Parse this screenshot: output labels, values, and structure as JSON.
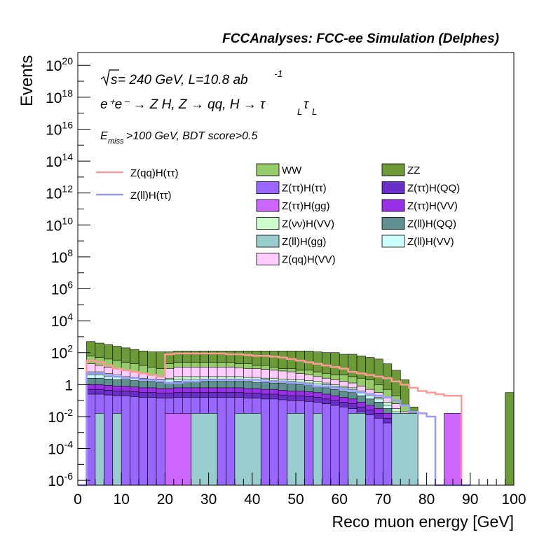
{
  "header": {
    "title": "FCCAnalyses: FCC-ee Simulation (Delphes)"
  },
  "annotations": {
    "energy_prefix": "s",
    "energy_text": " = 240 GeV, L=10.8 ab",
    "lumi_exponent": "-1",
    "process_text": "e⁺e⁻ → Z H, Z  → qq, H  → τ",
    "process_sub1": "L",
    "process_tau2": "τ",
    "process_sub2": "L",
    "cut_E": "E",
    "cut_sub": "miss",
    "cut_rest": ">100 GeV, BDT score>0.5"
  },
  "chart_data": {
    "type": "histogram-stacked-log",
    "title": "FCCAnalyses: FCC-ee Simulation (Delphes)",
    "xlabel": "Reco muon energy [GeV]",
    "ylabel": "Events",
    "xlim": [
      0,
      100
    ],
    "ylim_exp": [
      -6.3,
      20.8
    ],
    "log_y": true,
    "grid": false,
    "legend_placement": "upper-middle",
    "x_ticks": [
      "0",
      "10",
      "20",
      "30",
      "40",
      "50",
      "60",
      "70",
      "80",
      "90",
      "100"
    ],
    "y_ticks": [
      {
        "base": "10",
        "exp": "20",
        "value": 1e+20
      },
      {
        "base": "10",
        "exp": "18",
        "value": 1e+18
      },
      {
        "base": "10",
        "exp": "16",
        "value": 1e+16
      },
      {
        "base": "10",
        "exp": "14",
        "value": 100000000000000.0
      },
      {
        "base": "10",
        "exp": "12",
        "value": 1000000000000.0
      },
      {
        "base": "10",
        "exp": "10",
        "value": 10000000000.0
      },
      {
        "base": "10",
        "exp": "8",
        "value": 100000000.0
      },
      {
        "base": "10",
        "exp": "6",
        "value": 1000000.0
      },
      {
        "base": "10",
        "exp": "4",
        "value": 10000.0
      },
      {
        "base": "10",
        "exp": "2",
        "value": 100.0
      },
      {
        "base": "1",
        "exp": "",
        "value": 1
      },
      {
        "base": "10",
        "exp": "-2",
        "value": 0.01
      },
      {
        "base": "10",
        "exp": "-4",
        "value": 0.0001
      },
      {
        "base": "10",
        "exp": "-6",
        "value": 1e-06
      }
    ],
    "bin_width": 2,
    "stack_top_exp": [
      {
        "name": "ZZ",
        "color": "#6b9a36",
        "exps": [
          -6.3,
          2.7,
          2.6,
          2.5,
          2.4,
          2.3,
          2.2,
          2.1,
          2.05,
          2.05,
          2.05,
          2.1,
          2.1,
          2.1,
          2.1,
          2.1,
          2.1,
          2.1,
          2.1,
          2.1,
          2.1,
          2.1,
          2.1,
          2.1,
          2.1,
          2.1,
          2.1,
          2.05,
          2.0,
          2.0,
          1.9,
          1.9,
          1.8,
          1.7,
          1.6,
          1.3,
          0.9,
          0.3,
          -1.4,
          -6.3,
          -6.3,
          -6.3,
          -6.3,
          -6.3,
          -6.3,
          -6.3,
          -6.3,
          -6.3,
          -6.3,
          -0.5
        ]
      },
      {
        "name": "WW",
        "color": "#96cd6a",
        "exps": [
          -6.3,
          1.8,
          1.7,
          1.6,
          1.5,
          1.4,
          1.3,
          1.2,
          1.1,
          1.0,
          1.3,
          1.4,
          1.4,
          1.4,
          1.4,
          1.4,
          1.4,
          1.4,
          1.3,
          1.3,
          1.2,
          1.2,
          1.1,
          1.0,
          1.0,
          0.9,
          0.9,
          0.8,
          0.7,
          0.6,
          0.6,
          0.5,
          0.4,
          0.3,
          0.0,
          -0.3,
          -0.7,
          -1.3,
          -6.3,
          -6.3,
          -6.3,
          -6.3,
          -6.3,
          -6.3,
          -6.3,
          -6.3,
          -6.3,
          -6.3,
          -6.3,
          -6.3
        ]
      },
      {
        "name": "Z(qq)H(VV)",
        "color": "#ffccff",
        "exps": [
          -6.3,
          1.3,
          1.2,
          1.1,
          1.0,
          0.9,
          0.8,
          0.7,
          0.6,
          0.5,
          1.0,
          1.1,
          1.1,
          1.1,
          1.1,
          1.1,
          1.1,
          1.1,
          1.05,
          1.0,
          1.0,
          0.95,
          0.9,
          0.85,
          0.8,
          0.7,
          0.6,
          0.5,
          0.4,
          0.3,
          0.2,
          0.1,
          -0.1,
          -0.3,
          -0.5,
          -0.8,
          -1.2,
          -1.7,
          -6.3,
          -6.3,
          -6.3,
          -6.3,
          -6.3,
          -6.3,
          -6.3,
          -6.3,
          -6.3,
          -6.3,
          -6.3,
          -6.3
        ]
      },
      {
        "name": "Z(vv)H(VV)",
        "color": "#ccffcc",
        "exps": [
          -6.3,
          0.8,
          0.8,
          0.7,
          0.6,
          0.5,
          0.45,
          0.4,
          0.35,
          0.3,
          0.4,
          0.5,
          0.5,
          0.5,
          0.5,
          0.5,
          0.5,
          0.5,
          0.5,
          0.45,
          0.45,
          0.4,
          0.4,
          0.35,
          0.3,
          0.3,
          0.25,
          0.2,
          0.1,
          0.0,
          -0.1,
          -0.2,
          -0.4,
          -0.6,
          -0.8,
          -1.1,
          -1.5,
          -1.9,
          -6.3,
          -6.3,
          -6.3,
          -6.3,
          -6.3,
          -6.3,
          -6.3,
          -6.3,
          -6.3,
          -6.3,
          -6.3,
          -6.3
        ]
      },
      {
        "name": "Z(ll)H(VV)",
        "color": "#ccffff",
        "exps": [
          -6.3,
          0.6,
          0.6,
          0.5,
          0.5,
          0.4,
          0.4,
          0.35,
          0.3,
          0.3,
          0.3,
          0.35,
          0.35,
          0.35,
          0.35,
          0.35,
          0.35,
          0.35,
          0.35,
          0.3,
          0.3,
          0.3,
          0.25,
          0.2,
          0.2,
          0.15,
          0.1,
          0.05,
          0.0,
          -0.1,
          -0.2,
          -0.3,
          -0.5,
          -0.7,
          -0.9,
          -1.3,
          -1.7,
          -2.0,
          -6.3,
          -6.3,
          -6.3,
          -6.3,
          -6.3,
          -6.3,
          -6.3,
          -6.3,
          -6.3,
          -6.3,
          -6.3,
          -6.3
        ]
      },
      {
        "name": "Z(ll)H(QQ)",
        "color": "#5e9090",
        "exps": [
          -6.3,
          0.4,
          0.4,
          0.35,
          0.3,
          0.3,
          0.25,
          0.2,
          0.2,
          0.15,
          0.15,
          0.2,
          0.2,
          0.2,
          0.2,
          0.2,
          0.2,
          0.2,
          0.2,
          0.2,
          0.15,
          0.15,
          0.1,
          0.1,
          0.05,
          0.0,
          -0.05,
          -0.1,
          -0.2,
          -0.3,
          -0.4,
          -0.5,
          -0.7,
          -0.9,
          -1.1,
          -1.5,
          -1.9,
          -2.2,
          -6.3,
          -6.3,
          -6.3,
          -6.3,
          -6.3,
          -6.3,
          -6.3,
          -6.3,
          -6.3,
          -6.3,
          -6.3,
          -6.3
        ]
      },
      {
        "name": "Z(ττ)H(VV)",
        "color": "#9a2fe8",
        "exps": [
          -6.3,
          0.0,
          0.0,
          -0.05,
          -0.1,
          -0.1,
          -0.15,
          -0.2,
          -0.2,
          -0.25,
          -0.25,
          -0.2,
          -0.2,
          -0.2,
          -0.2,
          -0.2,
          -0.2,
          -0.2,
          -0.2,
          -0.25,
          -0.25,
          -0.3,
          -0.3,
          -0.35,
          -0.4,
          -0.4,
          -0.45,
          -0.5,
          -0.6,
          -0.7,
          -0.8,
          -0.9,
          -1.1,
          -1.3,
          -1.5,
          -1.8,
          -2.2,
          -2.5,
          -6.3,
          -6.3,
          -6.3,
          -6.3,
          -6.3,
          -6.3,
          -6.3,
          -6.3,
          -6.3,
          -6.3,
          -6.3,
          -6.3
        ]
      },
      {
        "name": "Z(ττ)H(QQ)",
        "color": "#6a2fc8",
        "exps": [
          -6.3,
          -0.3,
          -0.3,
          -0.35,
          -0.4,
          -0.4,
          -0.45,
          -0.5,
          -0.5,
          -0.55,
          -0.55,
          -0.5,
          -0.5,
          -0.5,
          -0.5,
          -0.5,
          -0.5,
          -0.5,
          -0.5,
          -0.55,
          -0.55,
          -0.6,
          -0.6,
          -0.65,
          -0.7,
          -0.7,
          -0.75,
          -0.8,
          -0.9,
          -1.0,
          -1.1,
          -1.2,
          -1.4,
          -1.6,
          -1.8,
          -2.1,
          -2.5,
          -2.8,
          -6.3,
          -6.3,
          -6.3,
          -6.3,
          -6.3,
          -6.3,
          -6.3,
          -6.3,
          -6.3,
          -6.3,
          -6.3,
          -6.3
        ]
      },
      {
        "name": "Z(ττ)H(ττ)",
        "color": "#9966ff",
        "exps": [
          -6.3,
          -0.6,
          -0.6,
          -0.65,
          -0.7,
          -0.7,
          -0.75,
          -0.8,
          -0.8,
          -0.85,
          -0.85,
          -0.8,
          -0.8,
          -0.8,
          -0.8,
          -0.8,
          -0.8,
          -0.8,
          -0.8,
          -0.85,
          -0.85,
          -0.9,
          -0.9,
          -0.95,
          -1.0,
          -1.0,
          -1.05,
          -1.1,
          -1.2,
          -1.3,
          -1.4,
          -1.5,
          -1.7,
          -1.9,
          -2.1,
          -2.4,
          -2.8,
          -3.1,
          -6.3,
          -6.3,
          -6.3,
          -6.3,
          -6.3,
          -6.3,
          -6.3,
          -6.3,
          -6.3,
          -6.3,
          -6.3,
          -6.3
        ]
      }
    ],
    "overlay_bars": [
      {
        "name": "Z(ττ)H(gg)",
        "color": "#cc66ff",
        "x0": 20,
        "x1": 26,
        "top_exp": -1.8
      },
      {
        "name": "Z(ττ)H(gg)",
        "color": "#cc66ff",
        "x0": 84,
        "x1": 88,
        "top_exp": -1.8
      },
      {
        "name": "Z(ll)H(gg)",
        "color": "#99cccc",
        "x0": 4,
        "x1": 6,
        "top_exp": -1.8
      },
      {
        "name": "Z(ll)H(gg)",
        "color": "#99cccc",
        "x0": 8,
        "x1": 10,
        "top_exp": -1.8
      },
      {
        "name": "Z(ll)H(gg)",
        "color": "#99cccc",
        "x0": 26,
        "x1": 32,
        "top_exp": -1.8
      },
      {
        "name": "Z(ll)H(gg)",
        "color": "#99cccc",
        "x0": 36,
        "x1": 42,
        "top_exp": -1.8
      },
      {
        "name": "Z(ll)H(gg)",
        "color": "#99cccc",
        "x0": 48,
        "x1": 52,
        "top_exp": -1.8
      },
      {
        "name": "Z(ll)H(gg)",
        "color": "#99cccc",
        "x0": 54,
        "x1": 56,
        "top_exp": -1.8
      },
      {
        "name": "Z(ll)H(gg)",
        "color": "#99cccc",
        "x0": 62,
        "x1": 66,
        "top_exp": -1.8
      },
      {
        "name": "Z(ll)H(gg)",
        "color": "#99cccc",
        "x0": 72,
        "x1": 78,
        "top_exp": -1.8
      }
    ],
    "signal_lines": [
      {
        "name": "Z(qq)H(ττ)",
        "color": "#ff9999",
        "x": [
          0,
          2,
          4,
          6,
          8,
          10,
          12,
          14,
          16,
          18,
          20,
          22,
          24,
          26,
          28,
          30,
          32,
          34,
          36,
          38,
          40,
          42,
          44,
          46,
          48,
          50,
          52,
          54,
          56,
          58,
          60,
          62,
          64,
          66,
          68,
          70,
          72,
          74,
          76,
          78,
          80,
          82,
          84,
          86,
          88,
          90
        ],
        "exps": [
          -6.3,
          1.5,
          1.4,
          1.2,
          1.0,
          0.9,
          0.8,
          0.7,
          0.6,
          0.5,
          1.9,
          1.95,
          1.95,
          1.95,
          1.95,
          1.95,
          1.95,
          1.9,
          1.9,
          1.85,
          1.8,
          1.8,
          1.75,
          1.7,
          1.6,
          1.5,
          1.4,
          1.3,
          1.2,
          1.1,
          1.0,
          0.8,
          0.7,
          0.6,
          0.5,
          0.4,
          0.2,
          0.0,
          -0.2,
          -0.4,
          -0.5,
          -0.6,
          -0.7,
          -0.7,
          -6.3,
          -6.3
        ]
      },
      {
        "name": "Z(ll)H(ττ)",
        "color": "#9999ff",
        "x": [
          0,
          2,
          4,
          6,
          8,
          10,
          12,
          14,
          16,
          18,
          20,
          22,
          24,
          26,
          28,
          30,
          32,
          34,
          36,
          38,
          40,
          42,
          44,
          46,
          48,
          50,
          52,
          54,
          56,
          58,
          60,
          62,
          64,
          66,
          68,
          70,
          72,
          74,
          76,
          78,
          80,
          82,
          84,
          86,
          88,
          90
        ],
        "exps": [
          -6.3,
          0.7,
          0.7,
          0.6,
          0.5,
          0.4,
          0.4,
          0.3,
          0.3,
          0.2,
          0.1,
          0.1,
          0.2,
          0.2,
          0.3,
          0.3,
          0.3,
          0.3,
          0.3,
          0.3,
          0.3,
          0.2,
          0.2,
          0.2,
          0.1,
          0.1,
          0.0,
          -0.1,
          -0.1,
          -0.2,
          -0.3,
          -0.4,
          -0.5,
          -0.6,
          -0.7,
          -0.8,
          -1.0,
          -1.3,
          -1.7,
          -1.8,
          -2.0,
          -6.3,
          -6.3,
          -6.3,
          -6.3,
          -6.3
        ]
      }
    ],
    "legend_lines": [
      {
        "label": "Z(qq)H(ττ)",
        "color": "#ff9999"
      },
      {
        "label": "Z(ll)H(ττ)",
        "color": "#9999ff"
      }
    ],
    "legend_boxes": [
      {
        "label": "WW",
        "color": "#96cd6a"
      },
      {
        "label": "ZZ",
        "color": "#6b9a36"
      },
      {
        "label": "Z(ττ)H(ττ)",
        "color": "#9966ff"
      },
      {
        "label": "Z(ττ)H(QQ)",
        "color": "#6a2fc8"
      },
      {
        "label": "Z(ττ)H(gg)",
        "color": "#cc66ff"
      },
      {
        "label": "Z(ττ)H(VV)",
        "color": "#9a2fe8"
      },
      {
        "label": "Z(νν)H(VV)",
        "color": "#ccffcc"
      },
      {
        "label": "Z(ll)H(QQ)",
        "color": "#5e9090"
      },
      {
        "label": "Z(ll)H(gg)",
        "color": "#99cccc"
      },
      {
        "label": "Z(ll)H(VV)",
        "color": "#ccffff"
      },
      {
        "label": "Z(qq)H(VV)",
        "color": "#ffccff"
      }
    ]
  }
}
